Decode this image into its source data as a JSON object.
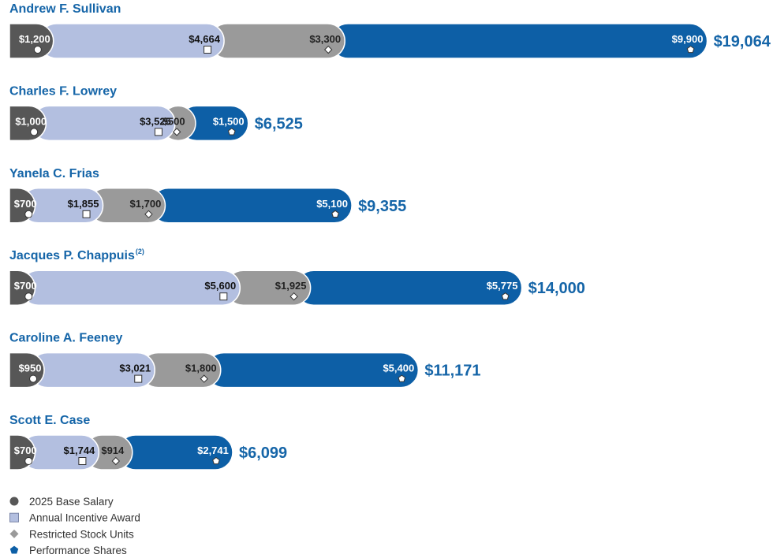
{
  "chart_data": {
    "type": "bar",
    "orientation": "horizontal",
    "stacked": true,
    "title": "",
    "xlabel": "",
    "ylabel": "",
    "grid": false,
    "legend_position": "bottom-left",
    "components": [
      {
        "key": "salary",
        "name": "2025 Base Salary",
        "color": "#575757",
        "text_color": "#ffffff",
        "marker": "circle"
      },
      {
        "key": "incentive",
        "name": "Annual Incentive Award",
        "color": "#b3bfe0",
        "text_color": "#111111",
        "marker": "square"
      },
      {
        "key": "rsu",
        "name": "Restricted Stock Units",
        "color": "#9a9a9a",
        "text_color": "#222222",
        "marker": "diamond"
      },
      {
        "key": "psu",
        "name": "Performance Shares",
        "color": "#0d5fa6",
        "text_color": "#ffffff",
        "marker": "pentagon"
      }
    ],
    "executives": [
      {
        "name": "Andrew F. Sullivan",
        "superscript": "",
        "values": [
          1200,
          4664,
          3300,
          9900
        ],
        "labels": [
          "$1,200",
          "$4,664",
          "$3,300",
          "$9,900"
        ],
        "total": 19064,
        "total_label": "$19,064"
      },
      {
        "name": "Charles F. Lowrey",
        "superscript": "",
        "values": [
          1000,
          3525,
          500,
          1500
        ],
        "labels": [
          "$1,000",
          "$3,525",
          "$500",
          "$1,500"
        ],
        "total": 6525,
        "total_label": "$6,525"
      },
      {
        "name": "Yanela C. Frias",
        "superscript": "",
        "values": [
          700,
          1855,
          1700,
          5100
        ],
        "labels": [
          "$700",
          "$1,855",
          "$1,700",
          "$5,100"
        ],
        "total": 9355,
        "total_label": "$9,355"
      },
      {
        "name": "Jacques P. Chappuis",
        "superscript": "(2)",
        "values": [
          700,
          5600,
          1925,
          5775
        ],
        "labels": [
          "$700",
          "$5,600",
          "$1,925",
          "$5,775"
        ],
        "total": 14000,
        "total_label": "$14,000"
      },
      {
        "name": "Caroline A. Feeney",
        "superscript": "",
        "values": [
          950,
          3021,
          1800,
          5400
        ],
        "labels": [
          "$950",
          "$3,021",
          "$1,800",
          "$5,400"
        ],
        "total": 11171,
        "total_label": "$11,171"
      },
      {
        "name": "Scott E. Case",
        "superscript": "",
        "values": [
          700,
          1744,
          914,
          2741
        ],
        "labels": [
          "$700",
          "$1,744",
          "$914",
          "$2,741"
        ],
        "total": 6099,
        "total_label": "$6,099"
      }
    ]
  }
}
